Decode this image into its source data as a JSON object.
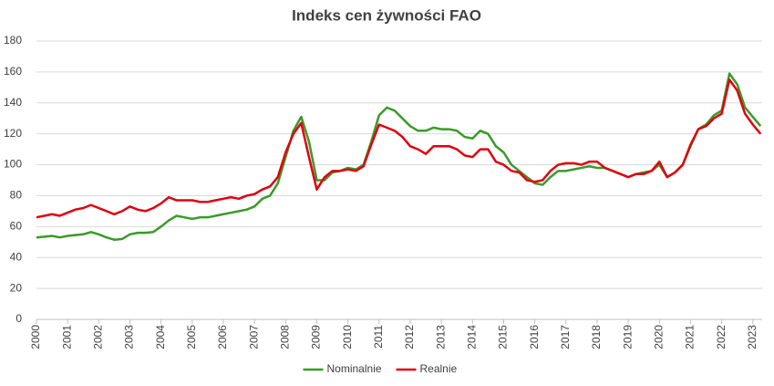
{
  "chart_data": {
    "type": "line",
    "title": "Indeks cen żywności FAO",
    "x": [
      2000,
      2000.25,
      2000.5,
      2000.75,
      2001,
      2001.25,
      2001.5,
      2001.75,
      2002,
      2002.25,
      2002.5,
      2002.75,
      2003,
      2003.25,
      2003.5,
      2003.75,
      2004,
      2004.25,
      2004.5,
      2004.75,
      2005,
      2005.25,
      2005.5,
      2005.75,
      2006,
      2006.25,
      2006.5,
      2006.75,
      2007,
      2007.25,
      2007.5,
      2007.75,
      2008,
      2008.25,
      2008.5,
      2008.75,
      2009,
      2009.25,
      2009.5,
      2009.75,
      2010,
      2010.25,
      2010.5,
      2010.75,
      2011,
      2011.25,
      2011.5,
      2011.75,
      2012,
      2012.25,
      2012.5,
      2012.75,
      2013,
      2013.25,
      2013.5,
      2013.75,
      2014,
      2014.25,
      2014.5,
      2014.75,
      2015,
      2015.25,
      2015.5,
      2015.75,
      2016,
      2016.25,
      2016.5,
      2016.75,
      2017,
      2017.25,
      2017.5,
      2017.75,
      2018,
      2018.25,
      2018.5,
      2018.75,
      2019,
      2019.25,
      2019.5,
      2019.75,
      2020,
      2020.25,
      2020.5,
      2020.75,
      2021,
      2021.25,
      2021.5,
      2021.75,
      2022,
      2022.25,
      2022.5,
      2022.75,
      2023,
      2023.25
    ],
    "series": [
      {
        "name": "Nominalnie",
        "color": "#3a9a2a",
        "values": [
          53,
          53.5,
          54,
          53,
          54,
          54.5,
          55,
          56.5,
          55,
          53,
          51.5,
          52,
          55,
          56,
          56,
          56.5,
          60,
          64,
          67,
          66,
          65,
          66,
          66,
          67,
          68,
          69,
          70,
          71,
          73,
          78,
          80,
          88,
          105,
          122,
          131,
          115,
          90,
          90,
          95,
          96,
          98,
          97,
          100,
          115,
          132,
          137,
          135,
          130,
          125,
          122,
          122,
          124,
          123,
          123,
          122,
          118,
          117,
          122,
          120,
          112,
          108,
          100,
          96,
          92,
          88,
          87,
          92,
          96,
          96,
          97,
          98,
          99,
          98,
          98,
          96,
          94,
          92,
          94,
          95,
          96,
          100,
          92,
          95,
          100,
          112,
          123,
          126,
          132,
          135,
          159,
          152,
          137,
          131,
          125
        ]
      },
      {
        "name": "Realnie",
        "color": "#e0000f",
        "values": [
          66,
          67,
          68,
          67,
          69,
          71,
          72,
          74,
          72,
          70,
          68,
          70,
          73,
          71,
          70,
          72,
          75,
          79,
          77,
          77,
          77,
          76,
          76,
          77,
          78,
          79,
          78,
          80,
          81,
          84,
          86,
          92,
          108,
          120,
          127,
          105,
          84,
          92,
          96,
          96,
          97,
          96,
          99,
          113,
          126,
          124,
          122,
          118,
          112,
          110,
          107,
          112,
          112,
          112,
          110,
          106,
          105,
          110,
          110,
          102,
          100,
          96,
          95,
          90,
          89,
          90,
          96,
          100,
          101,
          101,
          100,
          102,
          102,
          98,
          96,
          94,
          92,
          94,
          94,
          96,
          102,
          92,
          95,
          100,
          113,
          123,
          125,
          130,
          133,
          155,
          148,
          133,
          126,
          120
        ]
      }
    ],
    "xlim": [
      2000,
      2023.3
    ],
    "xticks": [
      2000,
      2001,
      2002,
      2003,
      2004,
      2005,
      2006,
      2007,
      2008,
      2009,
      2010,
      2011,
      2012,
      2013,
      2014,
      2015,
      2016,
      2017,
      2018,
      2019,
      2020,
      2021,
      2022,
      2023
    ],
    "ylim": [
      0,
      180
    ],
    "yticks": [
      0,
      20,
      40,
      60,
      80,
      100,
      120,
      140,
      160,
      180
    ],
    "grid": true,
    "legend": "bottom"
  }
}
